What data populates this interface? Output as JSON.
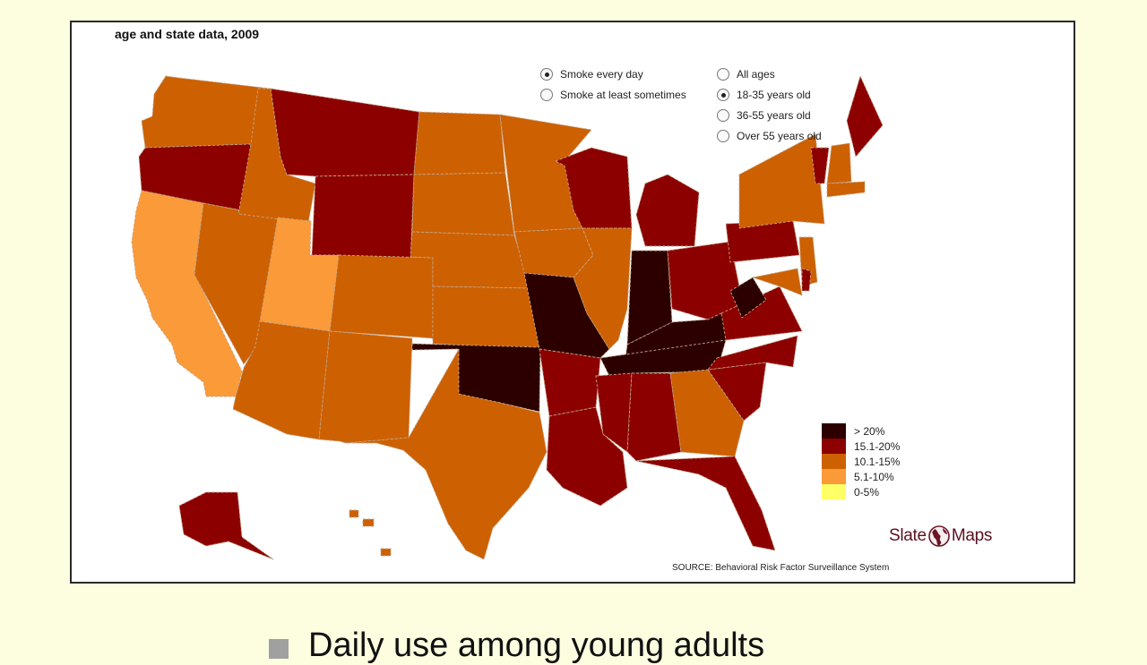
{
  "map": {
    "title": "age and state data, 2009",
    "frequency_options": [
      {
        "label": "Smoke every day",
        "selected": true
      },
      {
        "label": "Smoke at least sometimes",
        "selected": false
      }
    ],
    "age_options": [
      {
        "label": "All ages",
        "selected": false
      },
      {
        "label": "18-35 years old",
        "selected": true
      },
      {
        "label": "36-55 years old",
        "selected": false
      },
      {
        "label": "Over 55 years old",
        "selected": false
      }
    ],
    "legend": [
      {
        "label": "> 20%",
        "color": "#2d0000"
      },
      {
        "label": "15.1-20%",
        "color": "#8c0000"
      },
      {
        "label": "10.1-15%",
        "color": "#cd6000"
      },
      {
        "label": "5.1-10%",
        "color": "#fb9a38"
      },
      {
        "label": "0-5%",
        "color": "#ffff66"
      }
    ],
    "states": {
      "WA": 2,
      "OR": 1,
      "CA": 3,
      "NV": 2,
      "ID": 2,
      "MT": 1,
      "WY": 1,
      "UT": 3,
      "AZ": 2,
      "CO": 2,
      "NM": 2,
      "ND": 2,
      "SD": 2,
      "NE": 2,
      "KS": 2,
      "OK": 0,
      "TX": 2,
      "MN": 2,
      "IA": 2,
      "MO": 0,
      "AR": 1,
      "LA": 1,
      "WI": 1,
      "IL": 2,
      "MI": 1,
      "IN": 0,
      "OH": 1,
      "KY": 0,
      "TN": 0,
      "MS": 1,
      "AL": 1,
      "GA": 2,
      "FL": 1,
      "SC": 1,
      "NC": 1,
      "VA": 1,
      "WV": 0,
      "PA": 1,
      "NY": 2,
      "ME": 1,
      "VT": 1,
      "NH": 2,
      "MA": 2,
      "NJ": 2,
      "MD": 2,
      "DE": 1,
      "AK": 1,
      "HI": 2
    },
    "brand": {
      "left": "Slate",
      "right": "Maps"
    },
    "source": "SOURCE: Behavioral Risk Factor Surveillance System"
  },
  "caption": "Daily use among young adults"
}
